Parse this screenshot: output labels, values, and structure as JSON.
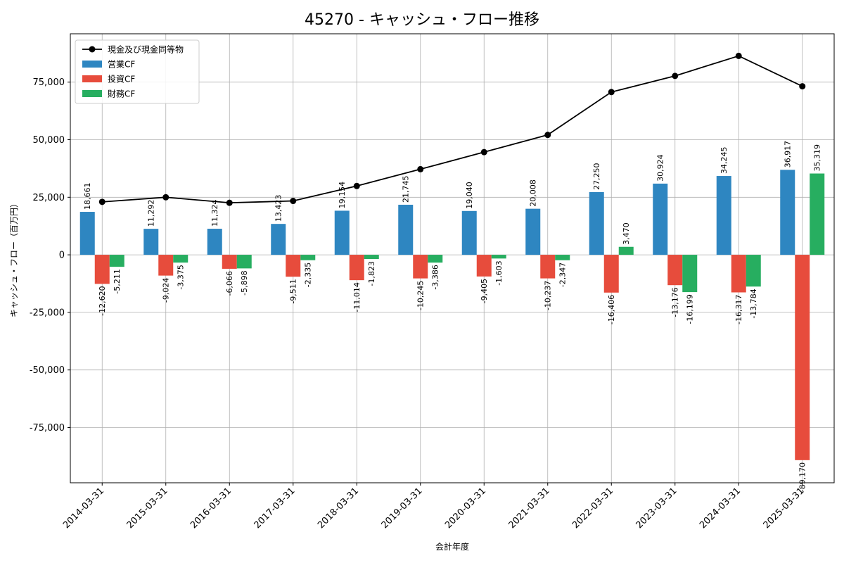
{
  "chart_data": {
    "type": "bar",
    "title": "45270 - キャッシュ・フロー推移",
    "xlabel": "会計年度",
    "ylabel": "キャッシュ・フロー（百万円）",
    "ylim": [
      -99000,
      96000
    ],
    "yticks": [
      -75000,
      -50000,
      -25000,
      0,
      25000,
      50000,
      75000
    ],
    "ytick_labels": [
      "-75,000",
      "-50,000",
      "-25,000",
      "0",
      "25,000",
      "50,000",
      "75,000"
    ],
    "grid": true,
    "legend_position": "top-left",
    "categories": [
      "2014-03-31",
      "2015-03-31",
      "2016-03-31",
      "2017-03-31",
      "2018-03-31",
      "2019-03-31",
      "2020-03-31",
      "2021-03-31",
      "2022-03-31",
      "2023-03-31",
      "2024-03-31",
      "2025-03-31"
    ],
    "series": [
      {
        "name": "営業CF",
        "type": "bar",
        "color": "#2e86c1",
        "values": [
          18661,
          11292,
          11324,
          13423,
          19154,
          21745,
          19040,
          20008,
          27250,
          30924,
          34245,
          36917
        ],
        "labels": [
          "18,661",
          "11,292",
          "11,324",
          "13,423",
          "19,154",
          "21,745",
          "19,040",
          "20,008",
          "27,250",
          "30,924",
          "34,245",
          "36,917"
        ]
      },
      {
        "name": "投資CF",
        "type": "bar",
        "color": "#e74c3c",
        "values": [
          -12620,
          -9024,
          -6066,
          -9511,
          -11014,
          -10245,
          -9405,
          -10237,
          -16406,
          -13176,
          -16317,
          -89170
        ],
        "labels": [
          "-12,620",
          "-9,024",
          "-6,066",
          "-9,511",
          "-11,014",
          "-10,245",
          "-9,405",
          "-10,237",
          "-16,406",
          "-13,176",
          "-16,317",
          "-89,170"
        ]
      },
      {
        "name": "財務CF",
        "type": "bar",
        "color": "#27ae60",
        "values": [
          -5211,
          -3375,
          -5898,
          -2335,
          -1823,
          -3386,
          -1603,
          -2347,
          3470,
          -16199,
          -13784,
          35319
        ],
        "labels": [
          "-5,211",
          "-3,375",
          "-5,898",
          "-2,335",
          "-1,823",
          "-3,386",
          "-1,603",
          "-2,347",
          "3,470",
          "-16,199",
          "-13,784",
          "35,319"
        ]
      },
      {
        "name": "現金及び現金同等物",
        "type": "line",
        "color": "#000000",
        "values": [
          23000,
          25000,
          22600,
          23400,
          29900,
          37200,
          44600,
          52100,
          70700,
          77700,
          86400,
          73200
        ]
      }
    ]
  }
}
